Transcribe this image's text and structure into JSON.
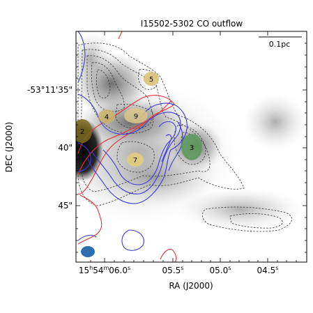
{
  "chart_data": {
    "type": "contour",
    "title": "I15502-5302 CO outflow",
    "xlabel": "RA (J2000)",
    "ylabel": "DEC (J2000)",
    "scalebar_label": "0.1pc",
    "x_ticks": [
      {
        "label_main": "15",
        "sup_h": "h",
        "mid": "54",
        "sup_m": "m",
        "tail": "06.0",
        "sup_s": "s"
      },
      {
        "label_main": "05.5",
        "sup_s": "s"
      },
      {
        "label_main": "05.0",
        "sup_s": "s"
      },
      {
        "label_main": "04.5",
        "sup_s": "s"
      }
    ],
    "y_ticks": [
      "-53°11'35\"",
      "40\"",
      "45\""
    ],
    "sources": [
      {
        "label": "2",
        "color": "#7a6a1e"
      },
      {
        "label": "3",
        "color": "#5a9a5a"
      },
      {
        "label": "4",
        "color": "#c9b36a"
      },
      {
        "label": "5",
        "color": "#d9c275"
      },
      {
        "label": "7",
        "color": "#e0cc80"
      },
      {
        "label": "9",
        "color": "#dcc88a"
      }
    ],
    "beam_color": "#2b6fb0",
    "red_lobe_color": "#e8303a",
    "blue_lobe_color": "#3a3ad8",
    "background_contour_color": "#333333"
  }
}
